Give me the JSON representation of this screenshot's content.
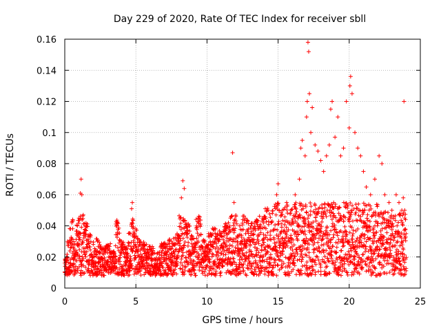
{
  "chart_data": {
    "type": "scatter",
    "title": "Day 229 of 2020, Rate Of TEC Index for receiver sbll",
    "xlabel": "GPS time / hours",
    "ylabel": "ROTI / TECUs",
    "xlim": [
      0,
      25
    ],
    "ylim": [
      0,
      0.16
    ],
    "xticks": [
      0,
      5,
      10,
      15,
      20,
      25
    ],
    "xtick_labels": [
      "0",
      "5",
      "10",
      "15",
      "20",
      "25"
    ],
    "yticks": [
      0,
      0.02,
      0.04,
      0.06,
      0.08,
      0.1,
      0.12,
      0.14,
      0.16
    ],
    "ytick_labels": [
      "0",
      "0.02",
      "0.04",
      "0.06",
      "0.08",
      "0.1",
      "0.12",
      "0.14",
      "0.16"
    ],
    "grid": true,
    "marker": "+",
    "color": "#ff0000",
    "series": [
      {
        "name": "ROTI",
        "points": [
          [
            0.1,
            0.018
          ],
          [
            0.2,
            0.03
          ],
          [
            0.3,
            0.012
          ],
          [
            0.4,
            0.038
          ],
          [
            0.5,
            0.042
          ],
          [
            0.7,
            0.028
          ],
          [
            0.9,
            0.04
          ],
          [
            1.0,
            0.045
          ],
          [
            1.1,
            0.061
          ],
          [
            1.15,
            0.07
          ],
          [
            1.2,
            0.06
          ],
          [
            1.3,
            0.047
          ],
          [
            1.5,
            0.04
          ],
          [
            1.7,
            0.033
          ],
          [
            2.0,
            0.028
          ],
          [
            2.3,
            0.03
          ],
          [
            2.6,
            0.025
          ],
          [
            3.0,
            0.027
          ],
          [
            3.4,
            0.022
          ],
          [
            3.7,
            0.042
          ],
          [
            4.0,
            0.03
          ],
          [
            4.3,
            0.025
          ],
          [
            4.6,
            0.035
          ],
          [
            4.7,
            0.051
          ],
          [
            4.75,
            0.055
          ],
          [
            5.0,
            0.038
          ],
          [
            5.3,
            0.03
          ],
          [
            5.6,
            0.028
          ],
          [
            6.0,
            0.025
          ],
          [
            6.5,
            0.022
          ],
          [
            7.0,
            0.028
          ],
          [
            7.5,
            0.03
          ],
          [
            7.9,
            0.035
          ],
          [
            8.2,
            0.058
          ],
          [
            8.3,
            0.069
          ],
          [
            8.4,
            0.064
          ],
          [
            8.6,
            0.04
          ],
          [
            9.0,
            0.032
          ],
          [
            9.4,
            0.045
          ],
          [
            9.8,
            0.03
          ],
          [
            10.2,
            0.033
          ],
          [
            10.6,
            0.038
          ],
          [
            11.0,
            0.035
          ],
          [
            11.4,
            0.04
          ],
          [
            11.8,
            0.087
          ],
          [
            11.9,
            0.055
          ],
          [
            12.3,
            0.04
          ],
          [
            12.7,
            0.045
          ],
          [
            13.1,
            0.04
          ],
          [
            13.5,
            0.042
          ],
          [
            13.9,
            0.045
          ],
          [
            14.3,
            0.05
          ],
          [
            14.6,
            0.048
          ],
          [
            14.9,
            0.06
          ],
          [
            15.0,
            0.067
          ],
          [
            15.3,
            0.05
          ],
          [
            15.6,
            0.055
          ],
          [
            15.9,
            0.05
          ],
          [
            16.2,
            0.06
          ],
          [
            16.5,
            0.07
          ],
          [
            16.6,
            0.09
          ],
          [
            16.7,
            0.095
          ],
          [
            16.9,
            0.085
          ],
          [
            17.0,
            0.11
          ],
          [
            17.05,
            0.12
          ],
          [
            17.1,
            0.158
          ],
          [
            17.15,
            0.152
          ],
          [
            17.2,
            0.125
          ],
          [
            17.3,
            0.1
          ],
          [
            17.4,
            0.116
          ],
          [
            17.6,
            0.092
          ],
          [
            17.8,
            0.088
          ],
          [
            18.0,
            0.082
          ],
          [
            18.2,
            0.075
          ],
          [
            18.4,
            0.085
          ],
          [
            18.6,
            0.092
          ],
          [
            18.7,
            0.115
          ],
          [
            18.8,
            0.12
          ],
          [
            19.0,
            0.097
          ],
          [
            19.2,
            0.11
          ],
          [
            19.4,
            0.085
          ],
          [
            19.6,
            0.09
          ],
          [
            19.8,
            0.12
          ],
          [
            20.0,
            0.103
          ],
          [
            20.05,
            0.13
          ],
          [
            20.1,
            0.136
          ],
          [
            20.2,
            0.125
          ],
          [
            20.4,
            0.1
          ],
          [
            20.6,
            0.09
          ],
          [
            20.8,
            0.085
          ],
          [
            21.0,
            0.075
          ],
          [
            21.2,
            0.065
          ],
          [
            21.5,
            0.06
          ],
          [
            21.8,
            0.07
          ],
          [
            22.1,
            0.085
          ],
          [
            22.3,
            0.08
          ],
          [
            22.5,
            0.06
          ],
          [
            22.8,
            0.055
          ],
          [
            23.0,
            0.05
          ],
          [
            23.3,
            0.06
          ],
          [
            23.5,
            0.055
          ],
          [
            23.7,
            0.05
          ],
          [
            23.8,
            0.058
          ],
          [
            23.85,
            0.12
          ],
          [
            23.9,
            0.05
          ],
          [
            24.0,
            0.035
          ]
        ]
      }
    ]
  }
}
